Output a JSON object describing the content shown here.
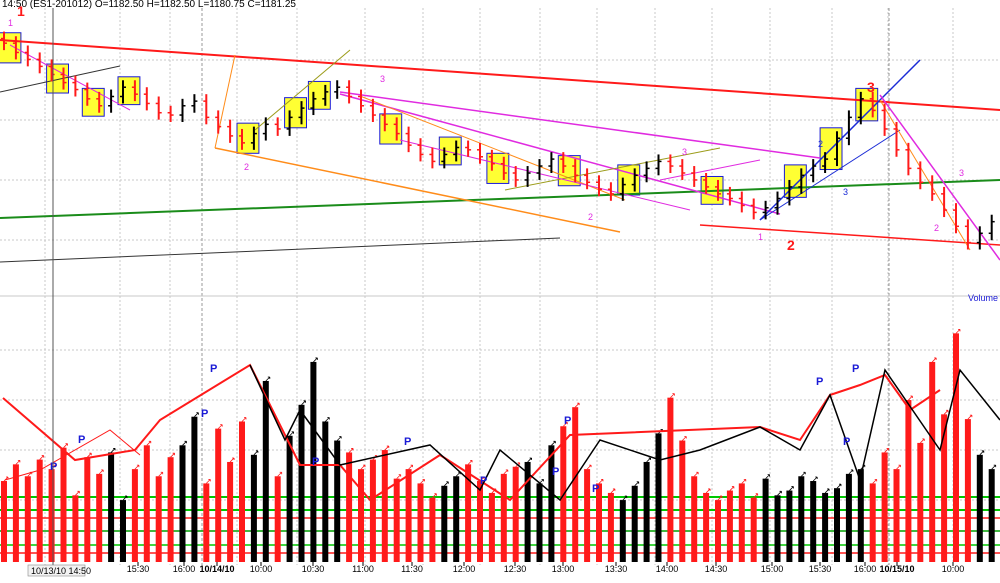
{
  "header": {
    "text": "14:50 (ES1-201012)  O=1182.50  H=1182.50  L=1180.75  C=1181.25"
  },
  "cursor_label": "10/13/10 14:50",
  "volume_label": "Volume",
  "colors": {
    "up": "#ff1a1a",
    "down": "#000000",
    "trend_red": "#ff1a1a",
    "trend_magenta": "#e02be0",
    "trend_orange": "#ff8c1a",
    "trend_green": "#1a8c1a",
    "trend_blue": "#1a2bd6",
    "trend_olive": "#9c9c1a",
    "box_fill": "#ffff33",
    "box_border": "#1a1ad6",
    "grid": "#c8c8c8",
    "vol_green": "#00c800",
    "p_blue": "#1a1ad6"
  },
  "chart_data": {
    "type": "bar",
    "title": "",
    "panels": [
      "price",
      "volume"
    ],
    "x_tick_labels": [
      {
        "label": "15:30",
        "bold": false
      },
      {
        "label": "16:00",
        "bold": false
      },
      {
        "label": "10/14/10",
        "bold": true
      },
      {
        "label": "10:00",
        "bold": false
      },
      {
        "label": "10:30",
        "bold": false
      },
      {
        "label": "11:00",
        "bold": false
      },
      {
        "label": "11:30",
        "bold": false
      },
      {
        "label": "12:00",
        "bold": false
      },
      {
        "label": "12:30",
        "bold": false
      },
      {
        "label": "13:00",
        "bold": false
      },
      {
        "label": "13:30",
        "bold": false
      },
      {
        "label": "14:00",
        "bold": false
      },
      {
        "label": "14:30",
        "bold": false
      },
      {
        "label": "15:00",
        "bold": false
      },
      {
        "label": "15:30",
        "bold": false
      },
      {
        "label": "16:00",
        "bold": false
      },
      {
        "label": "10/15/10",
        "bold": true
      },
      {
        "label": "10:00",
        "bold": false
      }
    ],
    "wave_labels": [
      {
        "text": "1",
        "color": "#e02be0",
        "big": false
      },
      {
        "text": "1",
        "color": "#ff1a1a",
        "big": true
      },
      {
        "text": "2",
        "color": "#e02be0",
        "big": false
      },
      {
        "text": "3",
        "color": "#e02be0",
        "big": false
      },
      {
        "text": "2",
        "color": "#e02be0",
        "big": false
      },
      {
        "text": "3",
        "color": "#e02be0",
        "big": false
      },
      {
        "text": "1",
        "color": "#e02be0",
        "big": false
      },
      {
        "text": "2",
        "color": "#ff1a1a",
        "big": true
      },
      {
        "text": "2",
        "color": "#1a2bd6",
        "big": false
      },
      {
        "text": "3",
        "color": "#1a2bd6",
        "big": false
      },
      {
        "text": "3",
        "color": "#ff1a1a",
        "big": true
      },
      {
        "text": "3",
        "color": "#e02be0",
        "big": false
      },
      {
        "text": "2",
        "color": "#e02be0",
        "big": false
      }
    ],
    "price_series_close": [
      1186.0,
      1185.2,
      1184.6,
      1184.0,
      1183.3,
      1182.6,
      1182.0,
      1181.2,
      1180.6,
      1181.4,
      1182.2,
      1181.6,
      1180.8,
      1180.0,
      1179.8,
      1180.6,
      1181.0,
      1179.6,
      1178.8,
      1178.0,
      1177.4,
      1178.2,
      1179.0,
      1178.6,
      1179.6,
      1180.4,
      1181.2,
      1181.8,
      1182.2,
      1181.4,
      1180.6,
      1179.8,
      1179.0,
      1178.2,
      1177.2,
      1176.4,
      1175.8,
      1176.4,
      1177.0,
      1176.8,
      1176.2,
      1175.6,
      1174.8,
      1174.2,
      1174.8,
      1175.4,
      1176.0,
      1175.4,
      1174.6,
      1174.0,
      1173.4,
      1173.0,
      1173.8,
      1174.6,
      1175.2,
      1175.8,
      1175.4,
      1174.8,
      1174.2,
      1173.6,
      1173.0,
      1172.6,
      1172.0,
      1171.4,
      1171.8,
      1172.6,
      1173.6,
      1174.6,
      1175.4,
      1176.0,
      1177.8,
      1179.6,
      1181.2,
      1180.2,
      1178.6,
      1176.8,
      1175.2,
      1174.0,
      1173.0,
      1171.6,
      1170.2,
      1168.8,
      1169.6,
      1170.6
    ],
    "volume_series": [
      3400,
      4100,
      3600,
      4300,
      3900,
      4800,
      2800,
      4400,
      3700,
      4600,
      2600,
      3900,
      4900,
      3600,
      4400,
      4900,
      6100,
      3300,
      5600,
      4200,
      5900,
      4500,
      7600,
      3600,
      5300,
      6600,
      8400,
      5900,
      5100,
      4600,
      3900,
      4300,
      4700,
      3500,
      3900,
      3300,
      2700,
      3200,
      3600,
      4100,
      3400,
      2900,
      3700,
      4000,
      4200,
      3300,
      4900,
      5700,
      6500,
      3900,
      3300,
      2900,
      2600,
      3200,
      4200,
      5400,
      6900,
      5100,
      3600,
      2900,
      2600,
      3000,
      3300,
      2700,
      3500,
      2800,
      3000,
      3600,
      3400,
      2900,
      3100,
      3700,
      3900,
      3300,
      4600,
      3900,
      6800,
      5000,
      8400,
      6200,
      9600,
      6000,
      4500,
      3900
    ]
  }
}
